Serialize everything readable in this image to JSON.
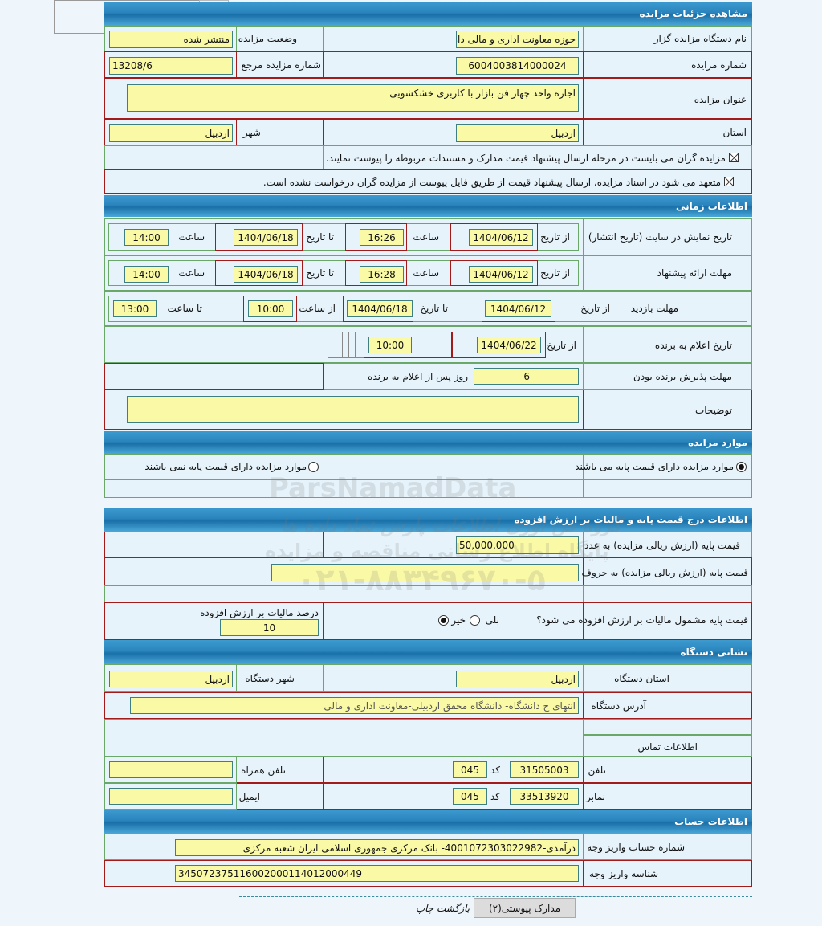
{
  "sections": {
    "details": "مشاهده جزئیات مزایده",
    "timing": "اطلاعات زمانی",
    "items": "موارد مزایده",
    "price": "اطلاعات درج قیمت پایه و مالیات بر ارزش افزوده",
    "address": "نشانی دستگاه",
    "account": "اطلاعات حساب"
  },
  "details": {
    "org_label": "نام دستگاه مزایده گزار",
    "org_value": "حوزه معاونت اداری و مالی دان",
    "status_label": "وضعیت مزایده",
    "status_value": "منتشر شده",
    "number_label": "شماره مزایده",
    "number_value": "6004003814000024",
    "ref_label": "شماره مزایده مرجع",
    "ref_value": "13208/6",
    "title_label": "عنوان مزایده",
    "title_value": "اجاره واحد چهار فن بازار با کاربری خشکشویی",
    "province_label": "استان",
    "province_value": "اردبیل",
    "city_label": "شهر",
    "city_value": "اردبیل",
    "check1": "مزایده گران می بایست در مرحله ارسال پیشنهاد قیمت مدارک و مستندات مربوطه را پیوست نمایند.",
    "check2": "متعهد می شود در اسناد مزایده، ارسال پیشنهاد قیمت از طریق فایل پیوست از مزایده گران درخواست نشده است."
  },
  "timing": {
    "from_date": "از تاریخ",
    "to_date": "تا تاریخ",
    "time": "ساعت",
    "from_time": "از ساعت",
    "to_time": "تا ساعت",
    "display_label": "تاریخ نمایش در سایت (تاریخ انتشار)",
    "display": {
      "from_date": "1404/06/12",
      "from_time": "16:26",
      "to_date": "1404/06/18",
      "to_time": "14:00"
    },
    "offer_label": "مهلت ارائه پیشنهاد",
    "offer": {
      "from_date": "1404/06/12",
      "from_time": "16:28",
      "to_date": "1404/06/18",
      "to_time": "14:00"
    },
    "visit_label": "مهلت بازدید",
    "visit": {
      "from_date": "1404/06/12",
      "to_date": "1404/06/18",
      "from_time": "10:00",
      "to_time": "13:00"
    },
    "winner_label": "تاریخ اعلام به برنده",
    "winner": {
      "from_date": "1404/06/22",
      "time": "10:00"
    },
    "accept_label": "مهلت پذیرش برنده بودن",
    "accept_value": "6",
    "accept_suffix": "روز پس از اعلام به برنده",
    "desc_label": "توضیحات",
    "desc_value": ""
  },
  "items": {
    "has_base": "موارد مزایده دارای قیمت پایه می باشند",
    "no_base": "موارد مزایده دارای قیمت پایه نمی باشند",
    "selected": "has_base"
  },
  "price": {
    "num_label": "قیمت پایه (ارزش ریالی مزایده) به عدد",
    "num_value": "50,000,000",
    "words_label": "قیمت پایه (ارزش ریالی مزایده) به حروف",
    "words_value": "",
    "vat_question": "قیمت پایه مشمول مالیات بر ارزش افزوده می شود؟",
    "yes": "بلی",
    "no": "خیر",
    "vat_selected": "no",
    "vat_pct_label": "درصد مالیات بر ارزش افزوده",
    "vat_pct_value": "10"
  },
  "address": {
    "province_label": "استان دستگاه",
    "province_value": "اردبیل",
    "city_label": "شهر دستگاه",
    "city_value": "اردبیل",
    "addr_label": "آدرس دستگاه",
    "addr_value": "انتهای خ دانشگاه- دانشگاه محقق اردبیلی-معاونت اداری و مالی",
    "contact_label": "اطلاعات تماس",
    "tel_label": "تلفن",
    "tel_value": "31505003",
    "code_label": "کد",
    "tel_code": "045",
    "mobile_label": "تلفن همراه",
    "mobile_value": "",
    "fax_label": "نمابر",
    "fax_value": "33513920",
    "fax_code": "045",
    "email_label": "ایمیل",
    "email_value": ""
  },
  "account": {
    "acc_label": "شماره حساب واریز وجه",
    "acc_value": "درآمدی-4001072303022982- بانک مرکزی جمهوری اسلامی ایران شعبه مرکزی",
    "id_label": "شناسه واریز وجه",
    "id_value": "345072375116002000114012000449"
  },
  "footer": {
    "attachments_button": "مدارک پیوستی(۲)",
    "print_back": "بازگشت چاپ"
  },
  "watermark": {
    "brand": "ParsNamadData",
    "line1": "گروه فن آوری اطلاعات پارس نماد داده ها",
    "line2": "پایگاه اطلاع رسانی مناقصه و مزایده",
    "phone": "۰۲۱-۸۸۳۴۹۶۷۰-۵"
  },
  "colors": {
    "header": "#2a84bd",
    "input": "#fafaa6",
    "cell": "#e6f3fb",
    "green_border": "#6aa86a",
    "red_border": "#a31a1a"
  }
}
